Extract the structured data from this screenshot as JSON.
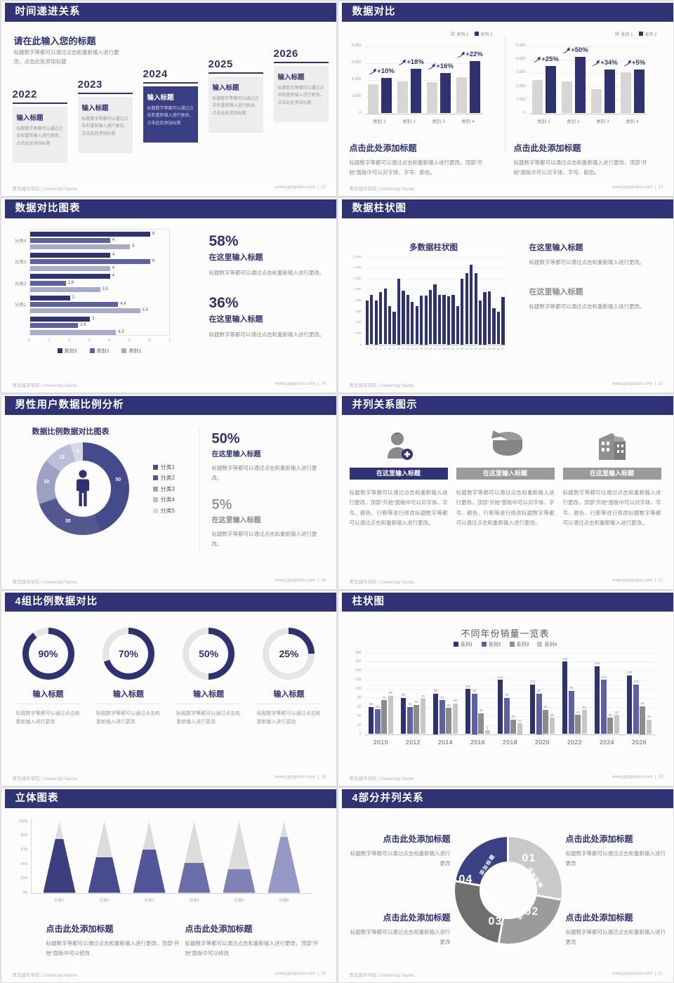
{
  "footer": {
    "left": "青岛城市学院 | University Name",
    "site": "www.pptgenius.com",
    "divider": "|"
  },
  "colors": {
    "primary_navy": "#2f3270",
    "header_navy": "#2f3274",
    "highlight_box": "#3a3e83",
    "medium_purple": "#5d61a2",
    "light_purple": "#a9abca",
    "gray_text": "#8a8a8a",
    "light_gray_box": "#ededed"
  },
  "slides": {
    "s12": {
      "title": "时间递进关系",
      "page": "12",
      "heading": "请在此输入您的标题",
      "intro": "标题数字等都可以通过点击和重新输入进行更改，点击此处添加标题",
      "card_title": "输入标题",
      "card_body": "标题数字等都可以通过点击和重新输入进行更改，点击此处添加标题",
      "years": [
        "2022",
        "2023",
        "2024",
        "2025",
        "2026"
      ]
    },
    "s13": {
      "title": "数据对比",
      "page": "13",
      "caption_title": "点击此处添加标题",
      "caption_body": "标题数字等都可以通过点击和重新输入进行更改，顶部“开始”面板中可以对字体、字号、颜色。"
    },
    "s14": {
      "title": "数据对比图表",
      "page": "14",
      "stats": [
        {
          "pct": "58%",
          "title": "在这里输入标题",
          "body": "标题数字等都可以通过点击和重新输入进行更改。"
        },
        {
          "pct": "36%",
          "title": "在这里输入标题",
          "body": "标题数字等都可以通过点击和重新输入进行更改。"
        }
      ]
    },
    "s15": {
      "title": "数据柱状图",
      "page": "15",
      "blocks": [
        {
          "title": "在这里输入标题",
          "body": "标题数字等都可以通过点击和重新输入进行更改。"
        },
        {
          "title": "在这里输入标题",
          "body": "标题数字等都可以通过点击和重新输入进行更改。"
        }
      ]
    },
    "s16": {
      "title": "男性用户数据比例分析",
      "page": "16",
      "chart_title": "数据比例数据对比图表",
      "stats": [
        {
          "pct": "50%",
          "title": "在这里输入标题",
          "body": "标题数字等都可以通过点击和重新输入进行更改。"
        },
        {
          "pct": "5%",
          "title": "在这里输入标题",
          "body": "标题数字等都可以通过点击和重新输入进行更改。"
        }
      ]
    },
    "s17": {
      "title": "并列关系图示",
      "page": "17",
      "banner": "在这里输入标题",
      "body": "标题数字等都可以通过点击和重新输入进行更改，顶部“开始”面板中可以对字体、字号、颜色、行距等进行修改标题数字等都可以通过点击和重新输入进行更改。",
      "icons": [
        "nurse-plus-icon",
        "pie-3d-icon",
        "building-icon"
      ]
    },
    "s18": {
      "title": "4组比例数据对比",
      "page": "18",
      "item_title": "输入标题",
      "item_body": "标题数字等都可以通过点击和重新输入进行更改"
    },
    "s19": {
      "title": "柱状图",
      "page": "19"
    },
    "s20": {
      "title": "立体图表",
      "page": "20",
      "caption_title": "点击此处添加标题",
      "caption_body": "标题数字等都可以通过点击和重新输入进行更改，顶部“开始”面板中可以修改"
    },
    "s21": {
      "title": "4部分并列关系",
      "page": "21",
      "caption_title": "点击此处添加标题",
      "caption_body": "标题数字等都可以通过点击和重新输入进行更改",
      "segments": [
        {
          "num": "01",
          "label": "添加标题",
          "color": "#c9c9c9",
          "start": 0,
          "end": 100
        },
        {
          "num": "02",
          "label": "添加标题",
          "color": "#9b9b9b",
          "start": 100,
          "end": 190
        },
        {
          "num": "03",
          "label": "添加标题",
          "color": "#6f6f6f",
          "start": 190,
          "end": 280
        },
        {
          "num": "04",
          "label": "添加标题",
          "color": "#3c4184",
          "start": 280,
          "end": 360
        }
      ]
    }
  },
  "chart_data": [
    {
      "type": "bar-pair",
      "categories": [
        "类别 1",
        "类别 2",
        "类别 3",
        "类别 4"
      ],
      "ylim": [
        0,
        8000
      ],
      "ystep": 2000,
      "pct_labels": [
        "+10%",
        "+18%",
        "+16%",
        "+22%"
      ],
      "series": [
        {
          "name": "系列 1",
          "color": "#d6d6d6",
          "values": [
            3500,
            3800,
            3700,
            4300
          ]
        },
        {
          "name": "系列 2",
          "color": "#2f3270",
          "values": [
            4200,
            5300,
            4800,
            6200
          ]
        }
      ]
    },
    {
      "type": "bar-pair",
      "categories": [
        "类别 1",
        "类别 2",
        "类别 3",
        "类别 4"
      ],
      "ylim": [
        0,
        5000
      ],
      "ystep": 1000,
      "pct_labels": [
        "+25%",
        "+50%",
        "+34%",
        "+5%"
      ],
      "series": [
        {
          "name": "系列 1",
          "color": "#d6d6d6",
          "values": [
            2500,
            2350,
            1800,
            3050
          ]
        },
        {
          "name": "系列 2",
          "color": "#2f3270",
          "values": [
            3500,
            4200,
            3250,
            3250
          ]
        }
      ]
    },
    {
      "type": "hbar",
      "xlim": [
        0,
        7
      ],
      "xstep": 1,
      "series_names": [
        "类别3",
        "类别2",
        "类别1"
      ],
      "colors": [
        "#2f3270",
        "#5d61a2",
        "#a9abca"
      ],
      "groups": [
        {
          "label": "分类4",
          "values": [
            6,
            4,
            5
          ]
        },
        {
          "label": "分类3",
          "values": [
            4,
            6,
            4
          ]
        },
        {
          "label": "分类2",
          "values": [
            4,
            1.8,
            3.5
          ]
        },
        {
          "label": "分类1",
          "values": [
            2,
            4.4,
            5.5
          ]
        },
        {
          "label": "",
          "values": [
            3,
            2.4,
            4.3
          ]
        }
      ]
    },
    {
      "type": "bar-many",
      "title": "多数据柱状图",
      "color": "#2f3270",
      "ylim": [
        0,
        1600
      ],
      "ystep": 200,
      "values": [
        800,
        900,
        800,
        950,
        1020,
        700,
        600,
        1200,
        980,
        900,
        780,
        700,
        890,
        890,
        990,
        1100,
        900,
        900,
        880,
        900,
        700,
        1200,
        1300,
        1450,
        1300,
        800,
        960,
        970,
        660,
        600,
        870
      ]
    },
    {
      "type": "pie",
      "labels": [
        "分类1",
        "分类2",
        "分类3",
        "分类4",
        "分类5"
      ],
      "values": [
        50,
        30,
        18,
        12,
        5
      ],
      "colors": [
        "#454a8c",
        "#54588f",
        "#9da0c3",
        "#bcbdd6",
        "#d8d9e6"
      ]
    },
    {
      "type": "rings",
      "values": [
        90,
        70,
        50,
        25
      ],
      "color": "#2f3270",
      "track": "#e5e5e8"
    },
    {
      "type": "bar-grouped",
      "title": "不同年份销量一览表",
      "categories": [
        "2010",
        "2012",
        "2014",
        "2016",
        "2018",
        "2020",
        "2022",
        "2024",
        "2026"
      ],
      "ylim": [
        0,
        180
      ],
      "ystep": 20,
      "series": [
        {
          "name": "系列1",
          "color": "#2f3270",
          "values": [
            60,
            80,
            90,
            100,
            120,
            110,
            160,
            150,
            130
          ]
        },
        {
          "name": "系列2",
          "color": "#5d61a2",
          "values": [
            55,
            60,
            75,
            90,
            80,
            90,
            96,
            120,
            110
          ]
        },
        {
          "name": "系列3",
          "color": "#8c8c8c",
          "values": [
            75,
            65,
            58,
            46,
            32,
            54,
            42,
            36,
            62
          ]
        },
        {
          "name": "系列4",
          "color": "#c6c6c6",
          "values": [
            85,
            78,
            68,
            8,
            24,
            36,
            53,
            42,
            32
          ]
        }
      ]
    },
    {
      "type": "cone",
      "categories": [
        "分类1",
        "分类2",
        "分类3",
        "分类4",
        "分类5",
        "分类6"
      ],
      "values": [
        75,
        50,
        60,
        42,
        33,
        78
      ],
      "colors": [
        "#3b3f80",
        "#474c8e",
        "#51559a",
        "#6a6ea9",
        "#7e82b4",
        "#9598c7"
      ],
      "ylabels": [
        "0%",
        "20%",
        "40%",
        "60%",
        "80%",
        "100%"
      ]
    }
  ]
}
